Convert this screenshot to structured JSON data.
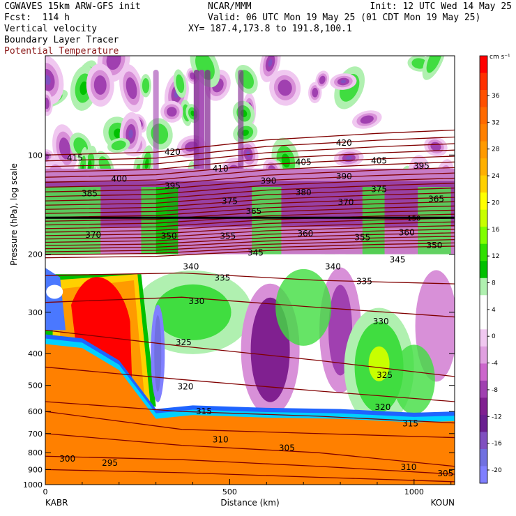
{
  "header": {
    "model": "CGWAVES 15km ARW-GFS init",
    "org": "NCAR/MMM",
    "init": "Init: 12 UTC Wed 14 May 25",
    "fcst": "Fcst:  114 h",
    "valid": "Valid: 06 UTC Mon 19 May 25 (01 CDT Mon 19 May 25)",
    "xy": "XY= 187.4,173.8 to 191.8,100.1",
    "field1": "Vertical velocity",
    "field2": "Boundary Layer Tracer",
    "field3": "Potential Temperature",
    "field3_color": "#8b1a1a"
  },
  "chart_data": {
    "type": "heatmap",
    "title": "",
    "xlabel": "Distance (km)",
    "ylabel": "Pressure (hPa), log scale",
    "xlim": [
      0,
      1110
    ],
    "ylim": [
      1000,
      50
    ],
    "x_ticks": [
      0,
      500,
      1000
    ],
    "y_ticks": [
      100,
      200,
      300,
      400,
      500,
      600,
      700,
      800,
      900,
      1000
    ],
    "endpoint_left": "KABR",
    "endpoint_right": "KOUN",
    "colorbar": {
      "unit": "cm s⁻¹",
      "labels": [
        36,
        32,
        28,
        24,
        20,
        16,
        12,
        8,
        4,
        0,
        -4,
        -8,
        -12,
        -16,
        -20
      ],
      "colors": [
        "#ff0000",
        "#ff3000",
        "#ff5000",
        "#ff6a00",
        "#ff8000",
        "#ff9a00",
        "#ffb000",
        "#ffd000",
        "#ffff00",
        "#c8ff00",
        "#80ff00",
        "#30e000",
        "#00c000",
        "#b0f0b0",
        "#ffffff",
        "#ffffff",
        "#f0c8f0",
        "#e0a0e0",
        "#cc66cc",
        "#a040b0",
        "#802090",
        "#6a2090",
        "#8050c0",
        "#7070e0",
        "#8080ff"
      ]
    },
    "tropopause_pressure": 155,
    "tropopause_label": "150",
    "theta_labels": [
      {
        "v": "415",
        "x": 80,
        "p": 102
      },
      {
        "v": "420",
        "x": 345,
        "p": 98
      },
      {
        "v": "420",
        "x": 810,
        "p": 92
      },
      {
        "v": "410",
        "x": 475,
        "p": 110
      },
      {
        "v": "405",
        "x": 700,
        "p": 105
      },
      {
        "v": "405",
        "x": 905,
        "p": 104
      },
      {
        "v": "395",
        "x": 1020,
        "p": 108
      },
      {
        "v": "400",
        "x": 200,
        "p": 118
      },
      {
        "v": "395",
        "x": 345,
        "p": 124
      },
      {
        "v": "390",
        "x": 605,
        "p": 120
      },
      {
        "v": "390",
        "x": 810,
        "p": 116
      },
      {
        "v": "385",
        "x": 120,
        "p": 131
      },
      {
        "v": "380",
        "x": 700,
        "p": 130
      },
      {
        "v": "375",
        "x": 500,
        "p": 138
      },
      {
        "v": "375",
        "x": 905,
        "p": 127
      },
      {
        "v": "370",
        "x": 815,
        "p": 139
      },
      {
        "v": "365",
        "x": 1060,
        "p": 136
      },
      {
        "v": "365",
        "x": 565,
        "p": 148
      },
      {
        "v": "370",
        "x": 130,
        "p": 175
      },
      {
        "v": "350",
        "x": 335,
        "p": 176
      },
      {
        "v": "355",
        "x": 495,
        "p": 176
      },
      {
        "v": "360",
        "x": 705,
        "p": 173
      },
      {
        "v": "355",
        "x": 860,
        "p": 178
      },
      {
        "v": "360",
        "x": 980,
        "p": 172
      },
      {
        "v": "350",
        "x": 1055,
        "p": 188
      },
      {
        "v": "345",
        "x": 570,
        "p": 198
      },
      {
        "v": "345",
        "x": 955,
        "p": 208
      },
      {
        "v": "340",
        "x": 395,
        "p": 218
      },
      {
        "v": "340",
        "x": 780,
        "p": 218
      },
      {
        "v": "335",
        "x": 480,
        "p": 236
      },
      {
        "v": "335",
        "x": 865,
        "p": 242
      },
      {
        "v": "330",
        "x": 410,
        "p": 278
      },
      {
        "v": "330",
        "x": 910,
        "p": 320
      },
      {
        "v": "325",
        "x": 375,
        "p": 370
      },
      {
        "v": "325",
        "x": 920,
        "p": 465
      },
      {
        "v": "320",
        "x": 380,
        "p": 505
      },
      {
        "v": "320",
        "x": 915,
        "p": 582
      },
      {
        "v": "315",
        "x": 430,
        "p": 600
      },
      {
        "v": "315",
        "x": 990,
        "p": 653
      },
      {
        "v": "310",
        "x": 475,
        "p": 730
      },
      {
        "v": "310",
        "x": 985,
        "p": 885
      },
      {
        "v": "305",
        "x": 655,
        "p": 775
      },
      {
        "v": "305",
        "x": 1085,
        "p": 925
      },
      {
        "v": "300",
        "x": 60,
        "p": 835
      },
      {
        "v": "295",
        "x": 175,
        "p": 860
      }
    ]
  }
}
